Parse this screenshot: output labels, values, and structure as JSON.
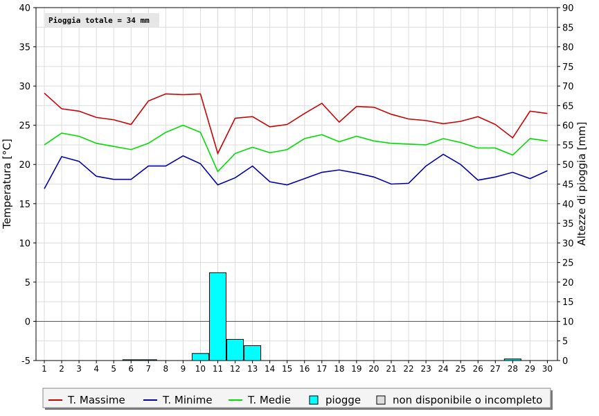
{
  "chart_data": {
    "type": "line",
    "annotation": "Pioggia totale = 34 mm",
    "ylabel_left": "Temperatura [°C]",
    "ylabel_right": "Altezze di pioggia [mm]",
    "ylim_left": [
      -5,
      40
    ],
    "ylim_right": [
      0,
      90
    ],
    "yticks_left": [
      -5,
      0,
      5,
      10,
      15,
      20,
      25,
      30,
      35,
      40
    ],
    "yticks_right": [
      0,
      5,
      10,
      15,
      20,
      25,
      30,
      35,
      40,
      45,
      50,
      55,
      60,
      65,
      70,
      75,
      80,
      85,
      90
    ],
    "x": [
      1,
      2,
      3,
      4,
      5,
      6,
      7,
      8,
      9,
      10,
      11,
      12,
      13,
      14,
      15,
      16,
      17,
      18,
      19,
      20,
      21,
      22,
      23,
      24,
      25,
      26,
      27,
      28,
      29,
      30
    ],
    "grid": true,
    "legend_position": "bottom",
    "series": [
      {
        "name": "T. Massime",
        "color": "#cc0000",
        "axis": "left",
        "values": [
          29.1,
          27.1,
          26.8,
          26.0,
          25.7,
          25.1,
          28.1,
          29.0,
          28.9,
          29.0,
          21.4,
          25.9,
          26.1,
          24.8,
          25.1,
          26.5,
          27.8,
          25.4,
          27.4,
          27.3,
          26.4,
          25.8,
          25.6,
          25.2,
          25.5,
          26.1,
          25.1,
          23.4,
          26.8,
          26.5
        ]
      },
      {
        "name": "T. Minime",
        "color": "#0000aa",
        "axis": "left",
        "values": [
          16.9,
          21.0,
          20.4,
          18.5,
          18.1,
          18.1,
          19.8,
          19.8,
          21.1,
          20.1,
          17.4,
          18.3,
          19.8,
          17.8,
          17.4,
          18.2,
          19.0,
          19.3,
          18.9,
          18.4,
          17.5,
          17.6,
          19.8,
          21.3,
          20.0,
          18.0,
          18.4,
          19.0,
          18.2,
          19.2
        ]
      },
      {
        "name": "T. Medie",
        "color": "#00dd00",
        "axis": "left",
        "values": [
          22.5,
          24.0,
          23.6,
          22.7,
          22.3,
          21.9,
          22.7,
          24.1,
          25.0,
          24.1,
          19.1,
          21.4,
          22.2,
          21.5,
          21.9,
          23.3,
          23.8,
          22.9,
          23.6,
          23.0,
          22.7,
          22.6,
          22.5,
          23.3,
          22.8,
          22.1,
          22.1,
          21.2,
          23.3,
          23.0
        ]
      },
      {
        "name": "piogge",
        "type": "bar",
        "color": "#00ffff",
        "axis": "right",
        "values": [
          0,
          0,
          0,
          0,
          0,
          0.2,
          0.2,
          0,
          0,
          1.8,
          22.4,
          5.4,
          3.8,
          0,
          0,
          0,
          0,
          0,
          0,
          0,
          0,
          0,
          0,
          0,
          0,
          0,
          0,
          0.4,
          0,
          0
        ]
      }
    ],
    "legend": [
      {
        "label": "T. Massime",
        "color": "#cc0000",
        "kind": "line"
      },
      {
        "label": "T. Minime",
        "color": "#0000aa",
        "kind": "line"
      },
      {
        "label": "T. Medie",
        "color": "#00dd00",
        "kind": "line"
      },
      {
        "label": "piogge",
        "color": "#00ffff",
        "kind": "box"
      },
      {
        "label": "non disponibile o incompleto",
        "color": "#dddddd",
        "kind": "box"
      }
    ]
  }
}
